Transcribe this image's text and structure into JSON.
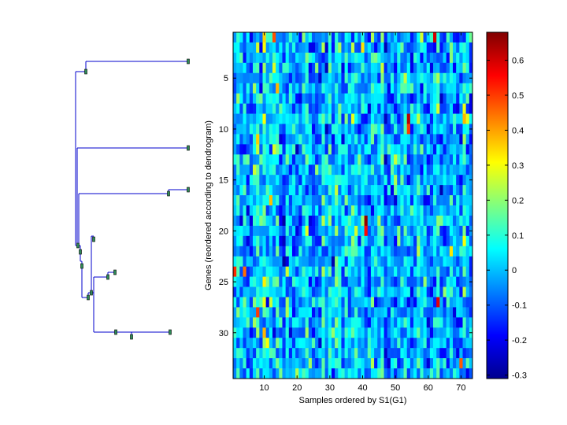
{
  "chart_data": [
    {
      "type": "dendrogram",
      "orientation": "horizontal",
      "title": "",
      "leaf_count": 34,
      "color": "#0000cc",
      "marker_color": "#2e8b57"
    },
    {
      "type": "heatmap",
      "title": "",
      "xlabel": "Samples ordered by S1(G1)",
      "ylabel": "Genes (reordered according to dendrogram)",
      "n_rows": 34,
      "n_cols": 73,
      "x_ticks": [
        10,
        20,
        30,
        40,
        50,
        60,
        70
      ],
      "y_ticks": [
        5,
        10,
        15,
        20,
        25,
        30
      ],
      "colormap": "jet",
      "value_range": [
        -0.31,
        0.68
      ],
      "generation_note": "synthetic values approximating the visual texture",
      "hot_cells": [
        {
          "row": 1,
          "col": 13,
          "value": 0.48
        },
        {
          "row": 1,
          "col": 62,
          "value": 0.6
        },
        {
          "row": 9,
          "col": 54,
          "value": 0.62
        },
        {
          "row": 10,
          "col": 54,
          "value": 0.5
        },
        {
          "row": 19,
          "col": 41,
          "value": 0.66
        },
        {
          "row": 20,
          "col": 41,
          "value": 0.55
        },
        {
          "row": 24,
          "col": 1,
          "value": 0.52
        },
        {
          "row": 24,
          "col": 4,
          "value": 0.45
        },
        {
          "row": 27,
          "col": 63,
          "value": 0.58
        },
        {
          "row": 28,
          "col": 8,
          "value": 0.5
        },
        {
          "row": 33,
          "col": 70,
          "value": 0.47
        }
      ],
      "colorbar": {
        "ticks": [
          0.6,
          0.5,
          0.4,
          0.3,
          0.2,
          0.1,
          0,
          -0.1,
          -0.2,
          -0.3
        ],
        "tick_labels": [
          "0.6",
          "0.5",
          "0.4",
          "0.3",
          "0.2",
          "0.1",
          "0",
          "-0.1",
          "-0.2",
          "-0.3"
        ]
      }
    }
  ]
}
